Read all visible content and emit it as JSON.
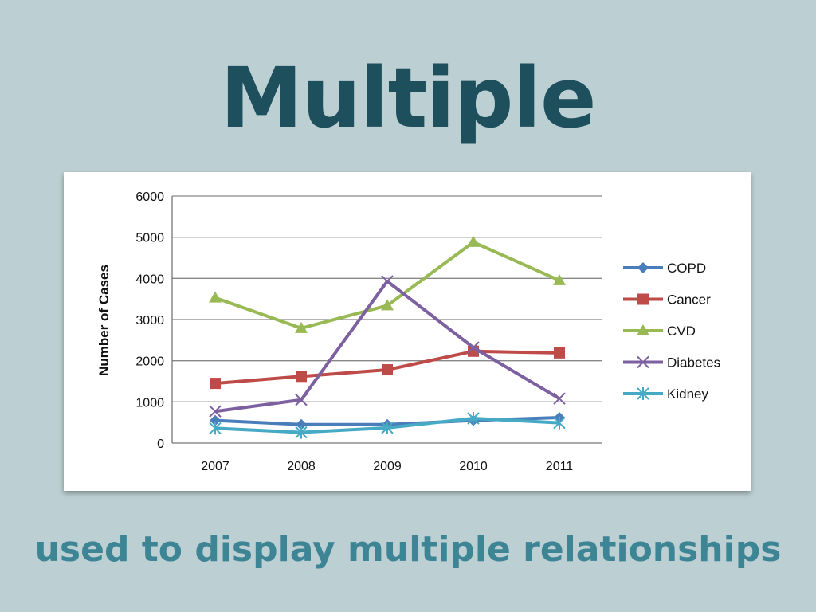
{
  "slide": {
    "title": "Multiple",
    "subtitle": "used to display multiple relationships"
  },
  "colors": {
    "background": "#bccfd3",
    "title": "#1e4f5c",
    "subtitle": "#3d8595",
    "COPD": "#4a7ebb",
    "Cancer": "#be4b48",
    "CVD": "#98b954",
    "Diabetes": "#7d60a0",
    "Kidney": "#46aac5"
  },
  "chart_data": {
    "type": "line",
    "title": "",
    "xlabel": "",
    "ylabel": "Number of Cases",
    "categories": [
      "2007",
      "2008",
      "2009",
      "2010",
      "2011"
    ],
    "ylim": [
      0,
      6000
    ],
    "yticks": [
      0,
      1000,
      2000,
      3000,
      4000,
      5000,
      6000
    ],
    "grid": true,
    "legend_position": "right",
    "series": [
      {
        "name": "COPD",
        "marker": "diamond",
        "values": [
          550,
          450,
          450,
          550,
          620
        ]
      },
      {
        "name": "Cancer",
        "marker": "square",
        "values": [
          1450,
          1620,
          1780,
          2230,
          2190
        ]
      },
      {
        "name": "CVD",
        "marker": "triangle",
        "values": [
          3530,
          2790,
          3340,
          4880,
          3950
        ]
      },
      {
        "name": "Diabetes",
        "marker": "x",
        "values": [
          770,
          1050,
          3930,
          2320,
          1080
        ]
      },
      {
        "name": "Kidney",
        "marker": "asterisk",
        "values": [
          360,
          260,
          370,
          600,
          490
        ]
      }
    ]
  }
}
